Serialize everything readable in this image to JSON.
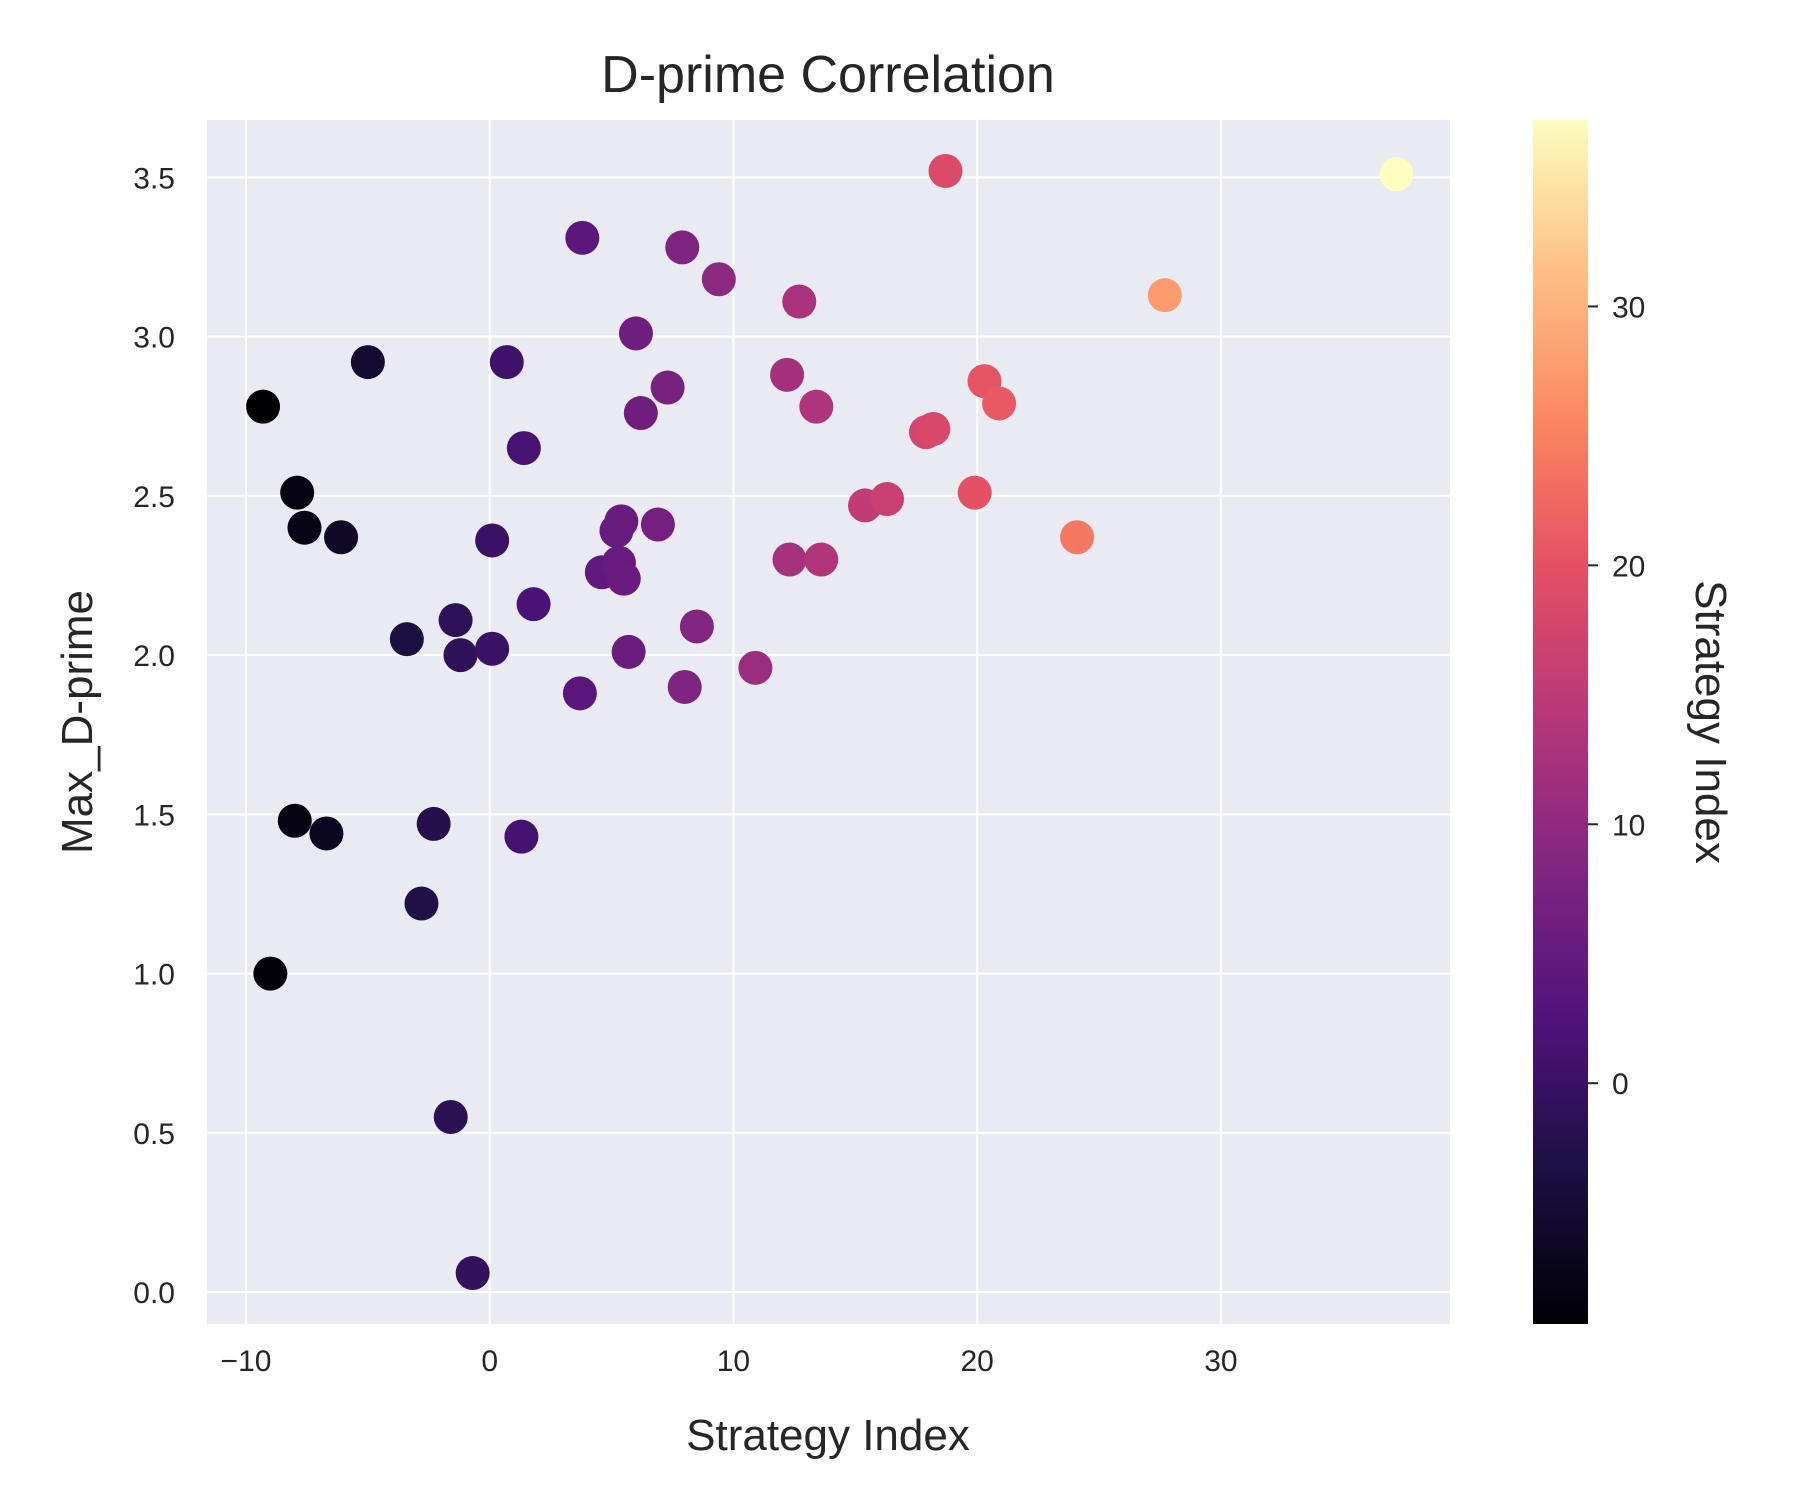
{
  "chart_data": {
    "type": "scatter",
    "title": "D-prime Correlation",
    "xlabel": "Strategy Index",
    "ylabel": "Max_D-prime",
    "xlim": [
      -11.6,
      39.4
    ],
    "ylim": [
      -0.1,
      3.68
    ],
    "xticks": [
      -10,
      0,
      10,
      20,
      30
    ],
    "xtick_labels": [
      "−10",
      "0",
      "10",
      "20",
      "30"
    ],
    "yticks": [
      0.0,
      0.5,
      1.0,
      1.5,
      2.0,
      2.5,
      3.0,
      3.5
    ],
    "ytick_labels": [
      "0.0",
      "0.5",
      "1.0",
      "1.5",
      "2.0",
      "2.5",
      "3.0",
      "3.5"
    ],
    "grid": true,
    "colormap": "magma",
    "colorbar": {
      "label": "Strategy Index",
      "range": [
        -9.3,
        37.2
      ],
      "ticks": [
        0,
        10,
        20,
        30
      ],
      "tick_labels": [
        "0",
        "10",
        "20",
        "30"
      ]
    },
    "colors": {
      "plot_background": "#eaeaf2",
      "grid": "#ffffff",
      "text": "#262626"
    },
    "points": [
      {
        "x": -9.3,
        "y": 2.78
      },
      {
        "x": -9.0,
        "y": 1.0
      },
      {
        "x": -8.0,
        "y": 1.48
      },
      {
        "x": -7.9,
        "y": 2.51
      },
      {
        "x": -7.6,
        "y": 2.4
      },
      {
        "x": -6.7,
        "y": 1.44
      },
      {
        "x": -6.1,
        "y": 2.37
      },
      {
        "x": -5.0,
        "y": 2.92
      },
      {
        "x": -3.4,
        "y": 2.05
      },
      {
        "x": -2.8,
        "y": 1.22
      },
      {
        "x": -2.3,
        "y": 1.47
      },
      {
        "x": -1.6,
        "y": 0.55
      },
      {
        "x": -1.4,
        "y": 2.11
      },
      {
        "x": -1.2,
        "y": 2.0
      },
      {
        "x": -0.7,
        "y": 0.06
      },
      {
        "x": 0.1,
        "y": 2.02
      },
      {
        "x": 0.1,
        "y": 2.36
      },
      {
        "x": 0.7,
        "y": 2.92
      },
      {
        "x": 1.3,
        "y": 1.43
      },
      {
        "x": 1.4,
        "y": 2.65
      },
      {
        "x": 1.8,
        "y": 2.16
      },
      {
        "x": 3.7,
        "y": 1.88
      },
      {
        "x": 3.8,
        "y": 3.31
      },
      {
        "x": 4.6,
        "y": 2.26
      },
      {
        "x": 5.2,
        "y": 2.39
      },
      {
        "x": 5.3,
        "y": 2.29
      },
      {
        "x": 5.4,
        "y": 2.42
      },
      {
        "x": 5.5,
        "y": 2.24
      },
      {
        "x": 5.7,
        "y": 2.01
      },
      {
        "x": 6.0,
        "y": 3.01
      },
      {
        "x": 6.2,
        "y": 2.76
      },
      {
        "x": 6.9,
        "y": 2.41
      },
      {
        "x": 7.3,
        "y": 2.84
      },
      {
        "x": 7.9,
        "y": 3.28
      },
      {
        "x": 8.0,
        "y": 1.9
      },
      {
        "x": 8.5,
        "y": 2.09
      },
      {
        "x": 9.4,
        "y": 3.18
      },
      {
        "x": 10.9,
        "y": 1.96
      },
      {
        "x": 12.2,
        "y": 2.88
      },
      {
        "x": 12.3,
        "y": 2.3
      },
      {
        "x": 12.7,
        "y": 3.11
      },
      {
        "x": 13.4,
        "y": 2.78
      },
      {
        "x": 13.6,
        "y": 2.3
      },
      {
        "x": 15.4,
        "y": 2.47
      },
      {
        "x": 16.3,
        "y": 2.49
      },
      {
        "x": 17.9,
        "y": 2.7
      },
      {
        "x": 18.2,
        "y": 2.71
      },
      {
        "x": 18.7,
        "y": 3.52
      },
      {
        "x": 19.9,
        "y": 2.51
      },
      {
        "x": 20.3,
        "y": 2.86
      },
      {
        "x": 20.9,
        "y": 2.79
      },
      {
        "x": 24.1,
        "y": 2.37
      },
      {
        "x": 27.7,
        "y": 3.13
      },
      {
        "x": 37.2,
        "y": 3.51
      }
    ]
  }
}
